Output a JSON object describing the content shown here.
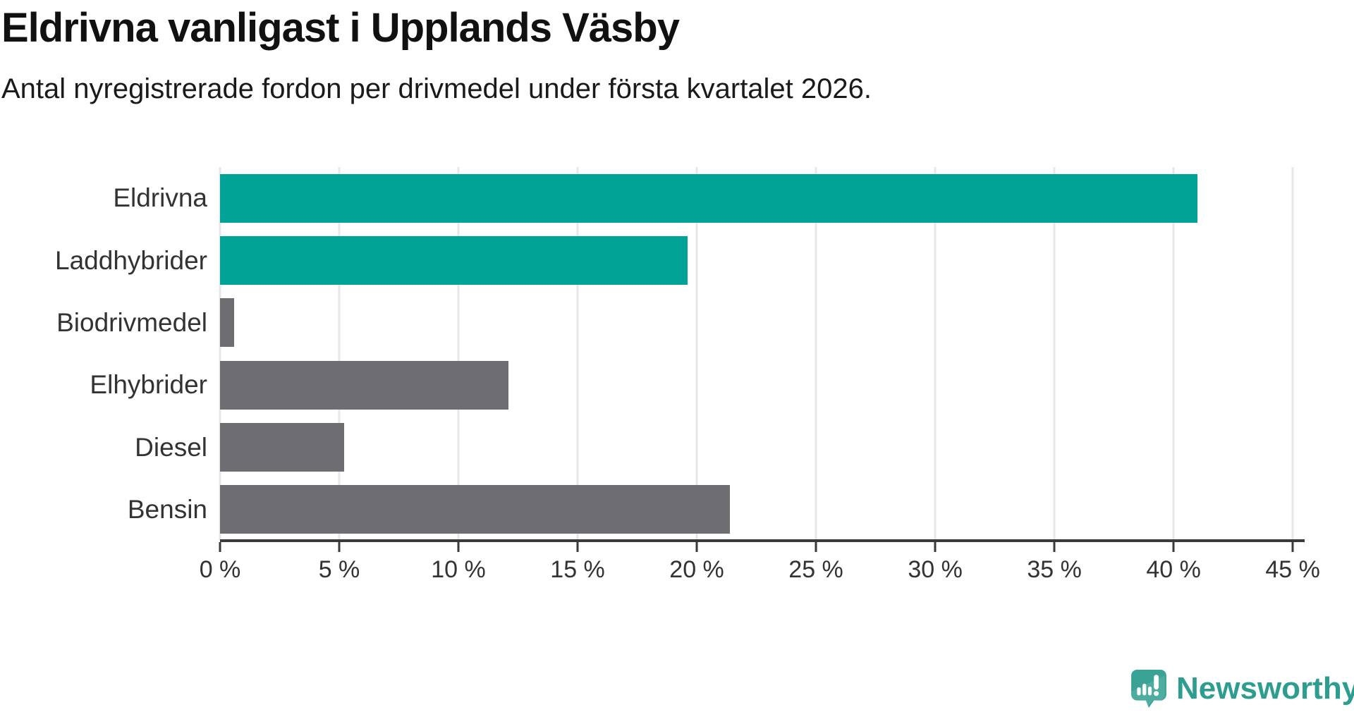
{
  "title": "Eldrivna vanligast i Upplands Väsby",
  "subtitle": "Antal nyregistrerade fordon per drivmedel under första kvartalet 2026.",
  "colors": {
    "accent_teal": "#00a396",
    "bar_gray": "#6d6d72",
    "gridline": "#e7e7e7",
    "axis": "#3a3a3a",
    "label_text": "#333333",
    "logo_teal": "#2d9d8f",
    "logo_icon_teal": "#3aa396"
  },
  "chart_data": {
    "type": "bar",
    "orientation": "horizontal",
    "title": "Eldrivna vanligast i Upplands Väsby",
    "subtitle": "Antal nyregistrerade fordon per drivmedel under första kvartalet 2026.",
    "categories": [
      "Eldrivna",
      "Laddhybrider",
      "Biodrivmedel",
      "Elhybrider",
      "Diesel",
      "Bensin"
    ],
    "values": [
      41.0,
      19.6,
      0.6,
      12.1,
      5.2,
      21.4
    ],
    "bar_colors": [
      "#00a396",
      "#00a396",
      "#6d6d72",
      "#6d6d72",
      "#6d6d72",
      "#6d6d72"
    ],
    "unit": "%",
    "xlim": [
      0,
      45.5
    ],
    "x_ticks": [
      0,
      5,
      10,
      15,
      20,
      25,
      30,
      35,
      40,
      45
    ],
    "x_tick_labels": [
      "0 %",
      "5 %",
      "10 %",
      "15 %",
      "20 %",
      "25 %",
      "30 %",
      "35 %",
      "40 %",
      "45 %"
    ],
    "grid": "vertical",
    "legend": "none"
  },
  "branding": {
    "logo_text": "Newsworthy",
    "logo_icon": "newsworthy-pin-barchart-icon"
  }
}
